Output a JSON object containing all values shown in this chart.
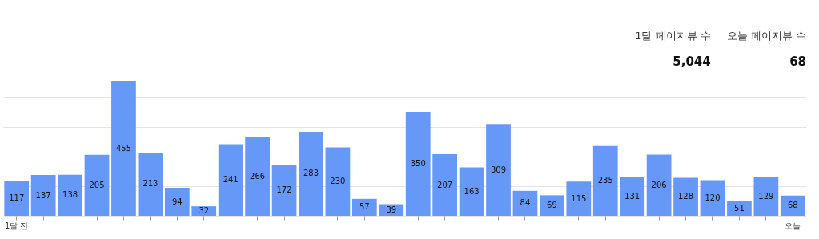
{
  "chart_data": {
    "type": "bar",
    "categories": [
      "1달 전",
      null,
      null,
      null,
      null,
      null,
      null,
      null,
      null,
      null,
      null,
      null,
      null,
      null,
      null,
      null,
      null,
      null,
      null,
      null,
      null,
      null,
      null,
      null,
      null,
      null,
      null,
      null,
      null,
      "오늘"
    ],
    "values": [
      117,
      137,
      138,
      205,
      455,
      213,
      94,
      32,
      241,
      266,
      172,
      283,
      230,
      57,
      39,
      350,
      207,
      163,
      309,
      84,
      69,
      115,
      235,
      131,
      206,
      128,
      120,
      51,
      129,
      68
    ],
    "color": "#6699f7",
    "data_labels": true,
    "grid": "y",
    "tick_labels": "x",
    "ylim": [
      0,
      455
    ],
    "annotations": [
      "1달 페이지뷰 수",
      "5,044",
      "오늘 페이지뷰 수",
      "68"
    ]
  }
}
